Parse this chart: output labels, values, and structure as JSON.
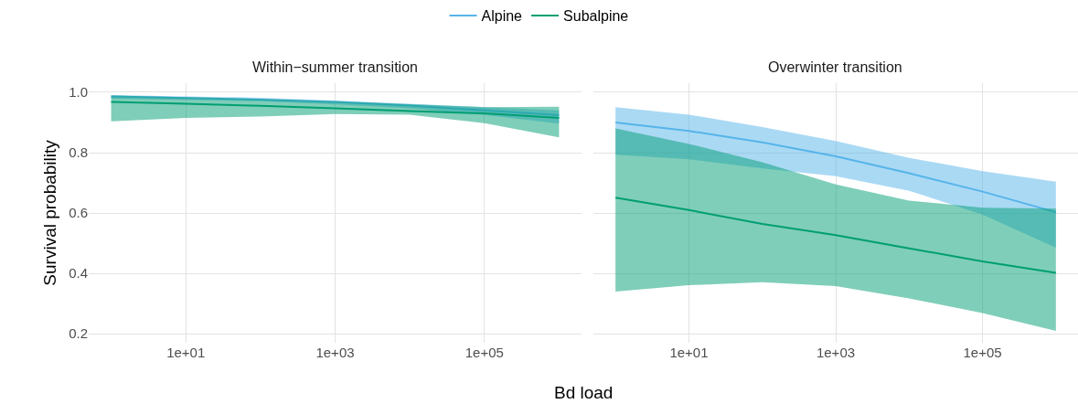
{
  "chart_data": [
    {
      "type": "line",
      "title": "Within−summer transition",
      "xlabel": "Bd load",
      "ylabel": "Survival probability",
      "legend": "top",
      "grid": true,
      "log": "x",
      "x": [
        1,
        10,
        100,
        1000,
        10000,
        100000,
        1000000
      ],
      "xlim": [
        0.5,
        2000000
      ],
      "xticks": [
        {
          "value": 10,
          "label": "1e+01"
        },
        {
          "value": 1000,
          "label": "1e+03"
        },
        {
          "value": 100000,
          "label": "1e+05"
        }
      ],
      "ylim": [
        0.171,
        1.03
      ],
      "yticks": [
        {
          "value": 0.2,
          "label": "0.2"
        },
        {
          "value": 0.4,
          "label": "0.4"
        },
        {
          "value": 0.6,
          "label": "0.6"
        },
        {
          "value": 0.8,
          "label": "0.8"
        },
        {
          "value": 1.0,
          "label": "1.0"
        }
      ],
      "series": [
        {
          "name": "Alpine",
          "color": "#56b4e9",
          "values": [
            0.986,
            0.981,
            0.976,
            0.968,
            0.956,
            0.94,
            0.924
          ],
          "lower": [
            0.979,
            0.975,
            0.97,
            0.96,
            0.947,
            0.925,
            0.896
          ],
          "upper": [
            0.991,
            0.987,
            0.982,
            0.973,
            0.962,
            0.95,
            0.94
          ]
        },
        {
          "name": "Subalpine",
          "color": "#009e73",
          "values": [
            0.968,
            0.962,
            0.955,
            0.947,
            0.938,
            0.93,
            0.915
          ],
          "lower": [
            0.904,
            0.915,
            0.92,
            0.928,
            0.926,
            0.898,
            0.851
          ],
          "upper": [
            0.989,
            0.984,
            0.978,
            0.97,
            0.96,
            0.951,
            0.952
          ]
        }
      ]
    },
    {
      "type": "line",
      "title": "Overwinter transition",
      "grid": true,
      "log": "x",
      "tick_labels": "x",
      "x": [
        1,
        10,
        100,
        1000,
        10000,
        100000,
        1000000
      ],
      "xlim": [
        0.5,
        2000000
      ],
      "xticks": [
        {
          "value": 10,
          "label": "1e+01"
        },
        {
          "value": 1000,
          "label": "1e+03"
        },
        {
          "value": 100000,
          "label": "1e+05"
        }
      ],
      "ylim": [
        0.171,
        1.03
      ],
      "yticks": [
        {
          "value": 0.2,
          "label": null
        },
        {
          "value": 0.4,
          "label": null
        },
        {
          "value": 0.6,
          "label": null
        },
        {
          "value": 0.8,
          "label": null
        },
        {
          "value": 1.0,
          "label": null
        }
      ],
      "series": [
        {
          "color": "#56b4e9",
          "values": [
            0.9,
            0.872,
            0.834,
            0.788,
            0.732,
            0.671,
            0.603
          ],
          "lower": [
            0.793,
            0.778,
            0.748,
            0.722,
            0.674,
            0.595,
            0.485
          ],
          "upper": [
            0.951,
            0.926,
            0.885,
            0.839,
            0.783,
            0.739,
            0.704
          ]
        },
        {
          "color": "#009e73",
          "values": [
            0.651,
            0.61,
            0.564,
            0.527,
            0.483,
            0.44,
            0.402
          ],
          "lower": [
            0.34,
            0.361,
            0.371,
            0.358,
            0.317,
            0.269,
            0.21
          ],
          "upper": [
            0.88,
            0.829,
            0.768,
            0.695,
            0.641,
            0.618,
            0.615
          ]
        }
      ]
    }
  ]
}
